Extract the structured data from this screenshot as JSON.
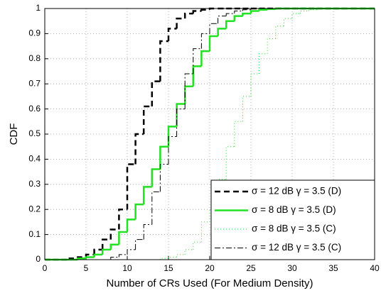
{
  "chart_data": {
    "type": "step",
    "xlabel": "Number of CRs Used (For Medium Density)",
    "ylabel": "CDF",
    "x": [
      0,
      1,
      2,
      3,
      4,
      5,
      6,
      7,
      8,
      9,
      10,
      11,
      12,
      13,
      14,
      15,
      16,
      17,
      18,
      19,
      20,
      21,
      22,
      23,
      24,
      25,
      26,
      27,
      28,
      29,
      30,
      31,
      32,
      33,
      34,
      35,
      36
    ],
    "series": [
      {
        "name": "σ = 12 dB γ = 3.5 (D)",
        "color": "#000000",
        "linestyle": "--",
        "linewidth": 2.5,
        "values": [
          0,
          0,
          0,
          0.005,
          0.01,
          0.02,
          0.04,
          0.08,
          0.12,
          0.2,
          0.38,
          0.5,
          0.61,
          0.71,
          0.87,
          0.92,
          0.96,
          0.98,
          0.99,
          0.995,
          1,
          1,
          1,
          1,
          1,
          1,
          1,
          1,
          1,
          1,
          1,
          1,
          1,
          1,
          1,
          1,
          1
        ]
      },
      {
        "name": "σ = 8 dB γ = 3.5 (D)",
        "color": "#22e022",
        "linestyle": "-",
        "linewidth": 2.5,
        "values": [
          0,
          0,
          0,
          0,
          0.005,
          0.01,
          0.02,
          0.04,
          0.06,
          0.11,
          0.16,
          0.22,
          0.29,
          0.36,
          0.45,
          0.53,
          0.62,
          0.69,
          0.77,
          0.83,
          0.89,
          0.92,
          0.95,
          0.97,
          0.98,
          0.99,
          0.995,
          0.998,
          1,
          1,
          1,
          1,
          1,
          1,
          1,
          1,
          1
        ]
      },
      {
        "name": "σ = 8 dB γ = 3.5 (C)",
        "color": "#22e022",
        "linestyle": ":",
        "linewidth": 1,
        "values": [
          0,
          0,
          0,
          0,
          0,
          0,
          0,
          0,
          0,
          0,
          0,
          0,
          0,
          0,
          0.005,
          0.01,
          0.02,
          0.04,
          0.07,
          0.15,
          0.2,
          0.32,
          0.45,
          0.55,
          0.65,
          0.74,
          0.82,
          0.88,
          0.93,
          0.96,
          0.98,
          0.99,
          0.995,
          1,
          1,
          1,
          1
        ]
      },
      {
        "name": "σ = 12 dB γ = 3.5 (C)",
        "color": "#000000",
        "linestyle": "-.",
        "linewidth": 1,
        "values": [
          0,
          0,
          0,
          0,
          0,
          0,
          0,
          0,
          0.01,
          0.02,
          0.04,
          0.08,
          0.14,
          0.27,
          0.38,
          0.49,
          0.6,
          0.74,
          0.84,
          0.9,
          0.94,
          0.97,
          0.98,
          0.99,
          0.995,
          1,
          1,
          1,
          1,
          1,
          1,
          1,
          1,
          1,
          1,
          1,
          1
        ]
      }
    ],
    "xlim": [
      0,
      40
    ],
    "xticks": [
      0,
      5,
      10,
      15,
      20,
      25,
      30,
      35,
      40
    ],
    "ylim": [
      0,
      1
    ],
    "yticks": [
      0,
      0.1,
      0.2,
      0.3,
      0.4,
      0.5,
      0.6,
      0.7,
      0.8,
      0.9,
      1
    ],
    "grid": true,
    "legend": "lower right"
  }
}
